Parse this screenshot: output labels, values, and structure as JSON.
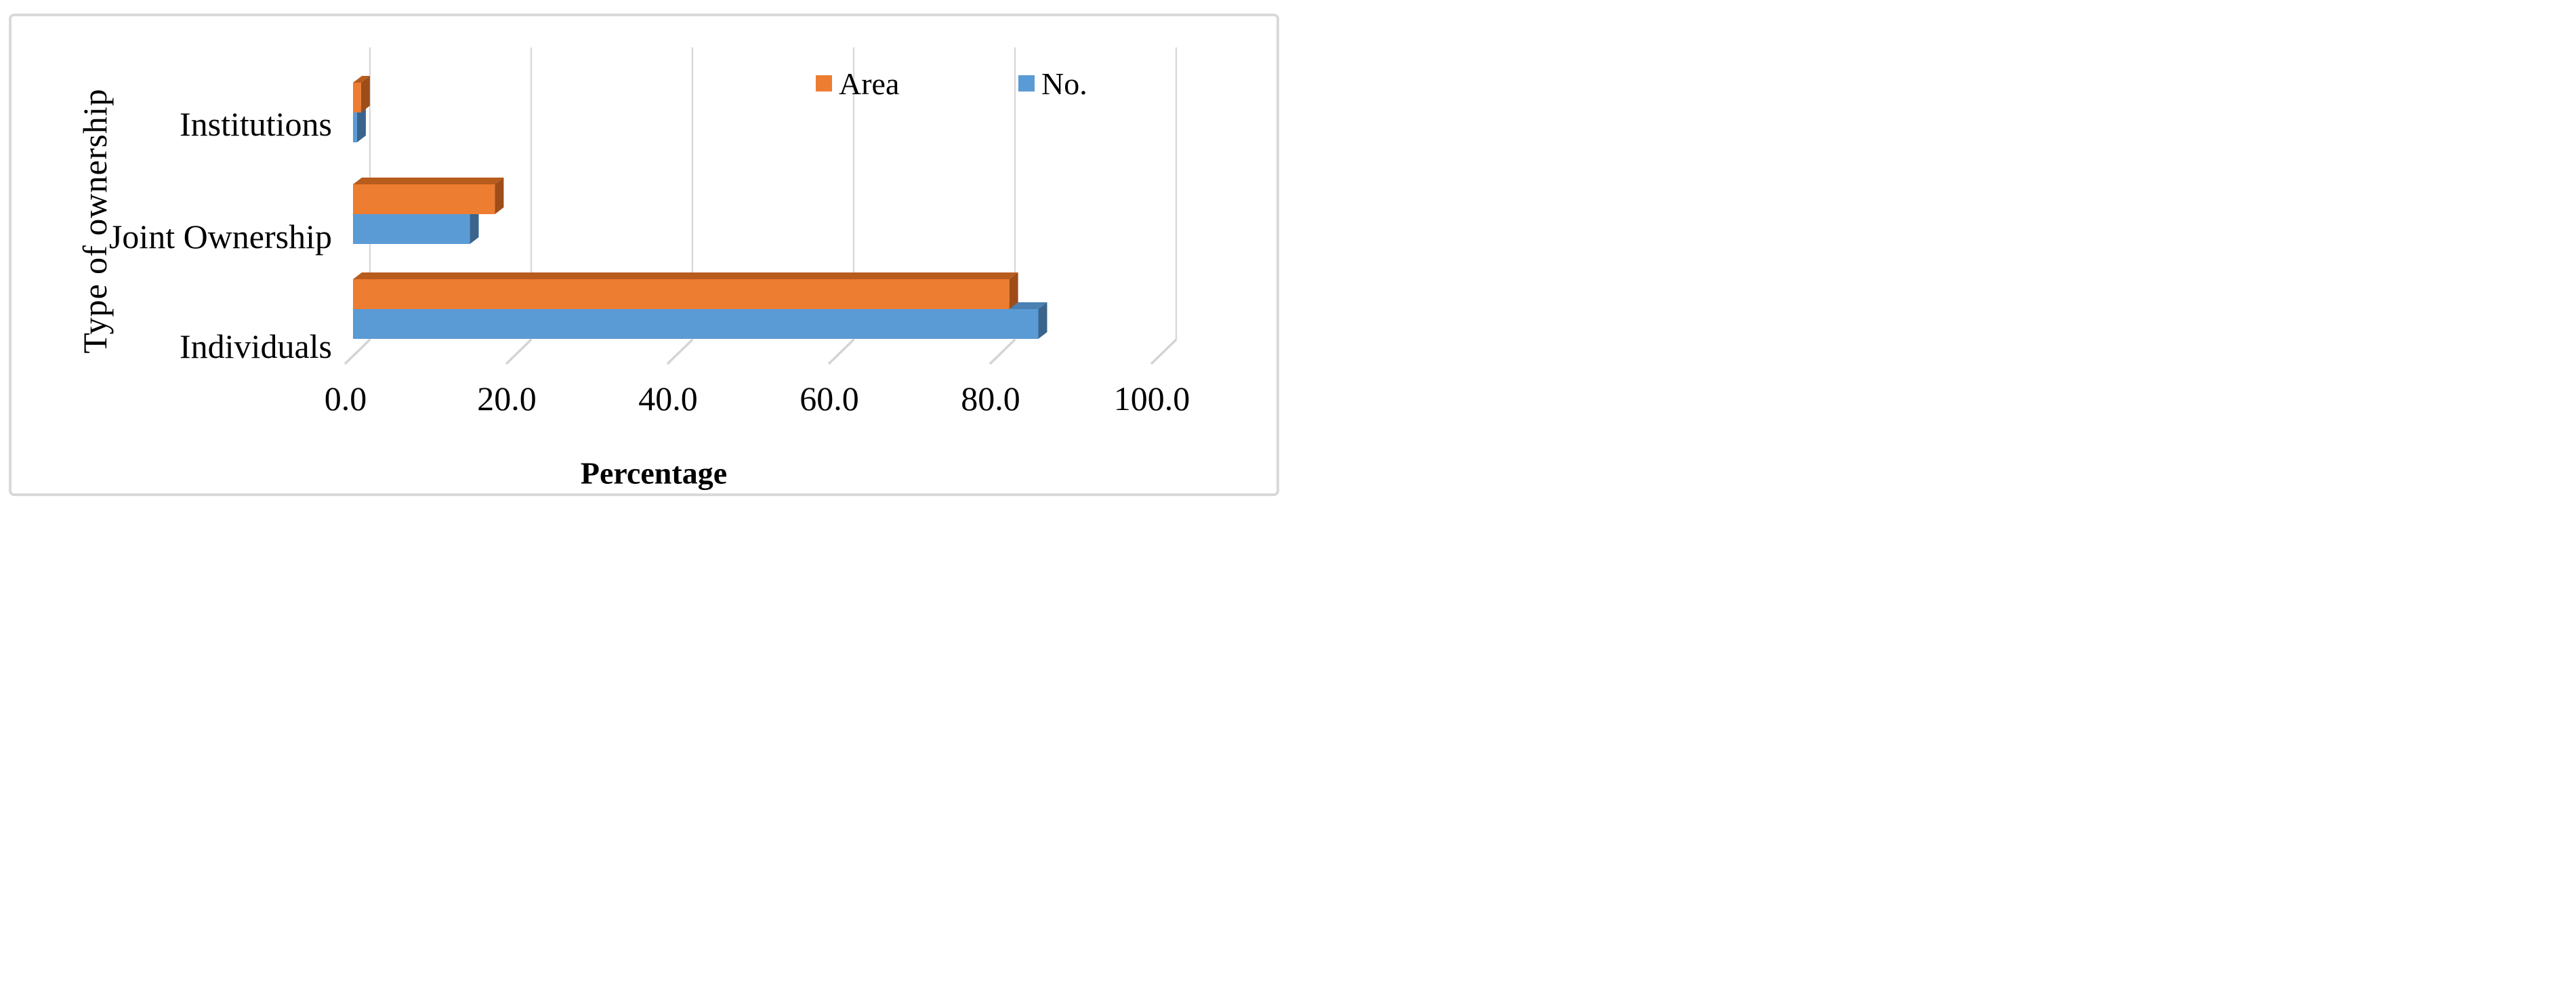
{
  "figure": {
    "xlabel": "Percentage",
    "ylabel": "Type of ownership",
    "border_color": "#D9D9D9",
    "background": "#FFFFFF",
    "gridline_color": "#D9D9D9",
    "tick_color": "#D4D4D4",
    "text_color": "#000000"
  },
  "legend": {
    "items": [
      {
        "label": "Area",
        "swatch_color": "#ED7D31",
        "swatch_icon": "orange-square-swatch"
      },
      {
        "label": "No.",
        "swatch_color": "#5B9BD5",
        "swatch_icon": "blue-square-swatch"
      }
    ],
    "position": "top-right-inside"
  },
  "chart_data": {
    "type": "bar",
    "orientation": "horizontal",
    "style": "3d-extruded",
    "title": "",
    "xlabel": "Percentage",
    "ylabel": "Type of ownership",
    "categories": [
      "Institutions",
      "Joint Ownership",
      "Individuals"
    ],
    "series": [
      {
        "name": "Area",
        "color": "#ED7D31",
        "color_top": "#B85C1E",
        "color_side": "#9E4D19",
        "values": [
          1.0,
          17.6,
          81.4
        ]
      },
      {
        "name": "No.",
        "color": "#5B9BD5",
        "color_top": "#4A80B2",
        "color_side": "#3A648C",
        "values": [
          0.5,
          14.5,
          85.0
        ]
      }
    ],
    "xlim": [
      0,
      100
    ],
    "xticks": [
      "0.0",
      "20.0",
      "40.0",
      "60.0",
      "80.0",
      "100.0"
    ],
    "xtick_values": [
      0,
      20,
      40,
      60,
      80,
      100
    ],
    "grid": true,
    "legend_entries": [
      "Area",
      "No."
    ],
    "legend_position": "top-right"
  }
}
